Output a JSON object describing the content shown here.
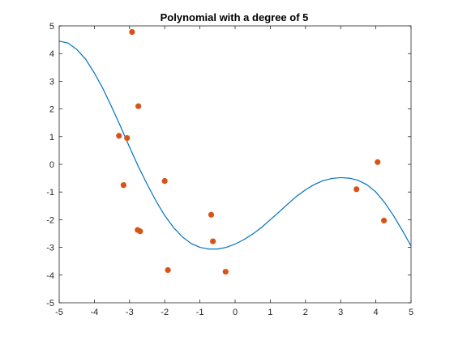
{
  "chart_data": {
    "type": "scatter",
    "title": "Polynomial with a degree of 5",
    "xlabel": "",
    "ylabel": "",
    "xlim": [
      -5,
      5
    ],
    "ylim": [
      -5,
      5
    ],
    "xticks": [
      -5,
      -4,
      -3,
      -2,
      -1,
      0,
      1,
      2,
      3,
      4,
      5
    ],
    "yticks": [
      -5,
      -4,
      -3,
      -2,
      -1,
      0,
      1,
      2,
      3,
      4,
      5
    ],
    "grid": false,
    "box": true,
    "series": [
      {
        "kind": "points",
        "color": "#d95319",
        "points": [
          [
            -2.93,
            4.78
          ],
          [
            -2.75,
            2.1
          ],
          [
            -3.3,
            1.03
          ],
          [
            -3.07,
            0.95
          ],
          [
            -3.17,
            -0.75
          ],
          [
            -2.77,
            -2.37
          ],
          [
            -2.7,
            -2.42
          ],
          [
            -2.0,
            -0.6
          ],
          [
            -1.91,
            -3.82
          ],
          [
            -0.68,
            -1.82
          ],
          [
            -0.63,
            -2.78
          ],
          [
            -0.27,
            -3.88
          ],
          [
            3.45,
            -0.9
          ],
          [
            4.05,
            0.08
          ],
          [
            4.23,
            -2.03
          ]
        ]
      },
      {
        "kind": "curve",
        "color": "#0072bd",
        "points": [
          [
            -5.0,
            4.45
          ],
          [
            -4.75,
            4.38
          ],
          [
            -4.5,
            4.15
          ],
          [
            -4.25,
            3.8
          ],
          [
            -4.0,
            3.3
          ],
          [
            -3.75,
            2.72
          ],
          [
            -3.5,
            2.05
          ],
          [
            -3.25,
            1.35
          ],
          [
            -3.0,
            0.62
          ],
          [
            -2.75,
            -0.08
          ],
          [
            -2.5,
            -0.72
          ],
          [
            -2.25,
            -1.32
          ],
          [
            -2.0,
            -1.85
          ],
          [
            -1.75,
            -2.28
          ],
          [
            -1.5,
            -2.62
          ],
          [
            -1.25,
            -2.86
          ],
          [
            -1.0,
            -3.0
          ],
          [
            -0.75,
            -3.06
          ],
          [
            -0.5,
            -3.06
          ],
          [
            -0.25,
            -3.0
          ],
          [
            0.0,
            -2.88
          ],
          [
            0.25,
            -2.72
          ],
          [
            0.5,
            -2.52
          ],
          [
            0.75,
            -2.28
          ],
          [
            1.0,
            -2.0
          ],
          [
            1.25,
            -1.72
          ],
          [
            1.5,
            -1.43
          ],
          [
            1.75,
            -1.15
          ],
          [
            2.0,
            -0.92
          ],
          [
            2.25,
            -0.73
          ],
          [
            2.5,
            -0.59
          ],
          [
            2.75,
            -0.51
          ],
          [
            3.0,
            -0.48
          ],
          [
            3.25,
            -0.5
          ],
          [
            3.5,
            -0.58
          ],
          [
            3.75,
            -0.74
          ],
          [
            4.0,
            -1.0
          ],
          [
            4.25,
            -1.38
          ],
          [
            4.5,
            -1.85
          ],
          [
            4.75,
            -2.38
          ],
          [
            5.0,
            -2.95
          ]
        ]
      }
    ]
  }
}
